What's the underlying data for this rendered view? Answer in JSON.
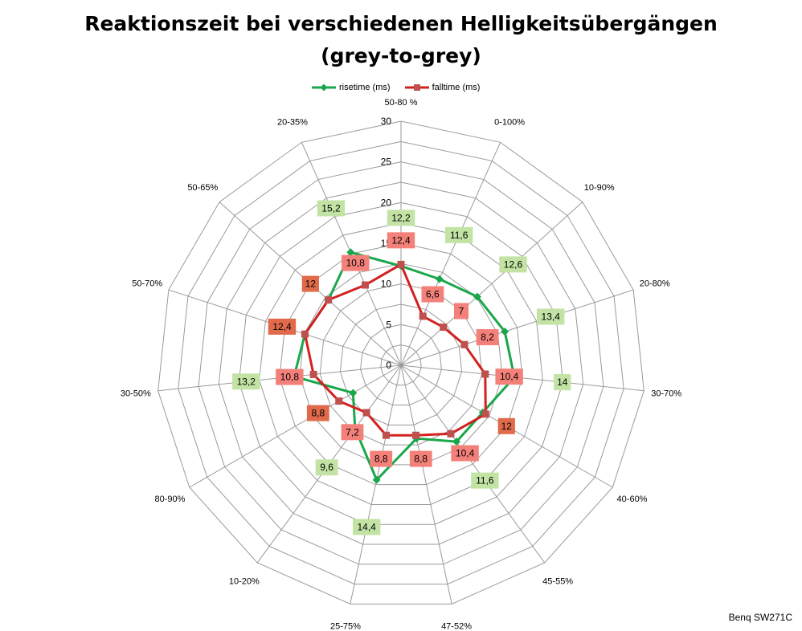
{
  "chart_data": {
    "type": "radar",
    "title_line1": "Reaktionszeit bei verschiedenen Helligkeitsübergängen",
    "title_line2": "(grey-to-grey)",
    "categories": [
      "50-80 %",
      "0-100%",
      "10-90%",
      "20-80%",
      "30-70%",
      "40-60%",
      "45-55%",
      "47-52%",
      "25-75%",
      "10-20%",
      "80-90%",
      "30-50%",
      "50-70%",
      "50-65%",
      "20-35%"
    ],
    "radial_ticks": [
      "0",
      "5",
      "10",
      "15",
      "20",
      "25",
      "30"
    ],
    "rmax": 30,
    "series": [
      {
        "name": "risetime (ms)",
        "color": "#1aa64b",
        "values": [
          12.2,
          11.6,
          12.6,
          13.4,
          14.0,
          11.6,
          11.6,
          9.2,
          14.4,
          9.6,
          6.8,
          13.2,
          12.4,
          12.0,
          15.2
        ],
        "labels": [
          "12,2",
          "11,6",
          "12,6",
          "13,4",
          "14",
          "",
          "11,6",
          "",
          "14,4",
          "9,6",
          "",
          "13,2",
          "",
          "",
          "15,2"
        ]
      },
      {
        "name": "falltime (ms)",
        "color": "#d32020",
        "values": [
          12.4,
          6.6,
          7.0,
          8.2,
          10.4,
          12.0,
          10.4,
          8.8,
          8.8,
          7.2,
          8.8,
          10.8,
          12.4,
          12.0,
          10.8
        ],
        "labels": [
          "12,4",
          "6,6",
          "7",
          "8,2",
          "10,4",
          "12",
          "10,4",
          "8,8",
          "8,8",
          "7,2",
          "8,8",
          "10,8",
          "12,4",
          "12",
          "10,8"
        ]
      }
    ],
    "label_colors": {
      "risetime": "#c2e3a4",
      "falltime": "#f4807a",
      "falltime_dark": "#e06a4a"
    },
    "legend_position": "top",
    "grid": true
  },
  "watermark": "Benq SW271C"
}
